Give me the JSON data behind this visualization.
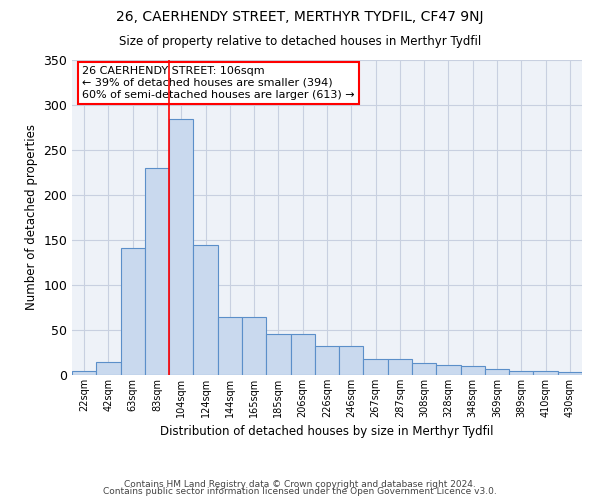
{
  "title": "26, CAERHENDY STREET, MERTHYR TYDFIL, CF47 9NJ",
  "subtitle": "Size of property relative to detached houses in Merthyr Tydfil",
  "xlabel": "Distribution of detached houses by size in Merthyr Tydfil",
  "ylabel": "Number of detached properties",
  "footnote1": "Contains HM Land Registry data © Crown copyright and database right 2024.",
  "footnote2": "Contains public sector information licensed under the Open Government Licence v3.0.",
  "bar_labels": [
    "22sqm",
    "42sqm",
    "63sqm",
    "83sqm",
    "104sqm",
    "124sqm",
    "144sqm",
    "165sqm",
    "185sqm",
    "206sqm",
    "226sqm",
    "246sqm",
    "267sqm",
    "287sqm",
    "308sqm",
    "328sqm",
    "348sqm",
    "369sqm",
    "389sqm",
    "410sqm",
    "430sqm"
  ],
  "bar_values": [
    5,
    14,
    141,
    230,
    285,
    145,
    65,
    65,
    46,
    46,
    32,
    32,
    18,
    18,
    13,
    11,
    10,
    7,
    5,
    4,
    3
  ],
  "bar_color": "#c9d9ee",
  "bar_edgecolor": "#5b8fc9",
  "grid_color": "#c8d0e0",
  "bg_color": "#eef2f8",
  "red_line_x": 3.5,
  "annotation_title": "26 CAERHENDY STREET: 106sqm",
  "annotation_line1": "← 39% of detached houses are smaller (394)",
  "annotation_line2": "60% of semi-detached houses are larger (613) →",
  "ylim": [
    0,
    350
  ],
  "yticks": [
    0,
    50,
    100,
    150,
    200,
    250,
    300,
    350
  ]
}
